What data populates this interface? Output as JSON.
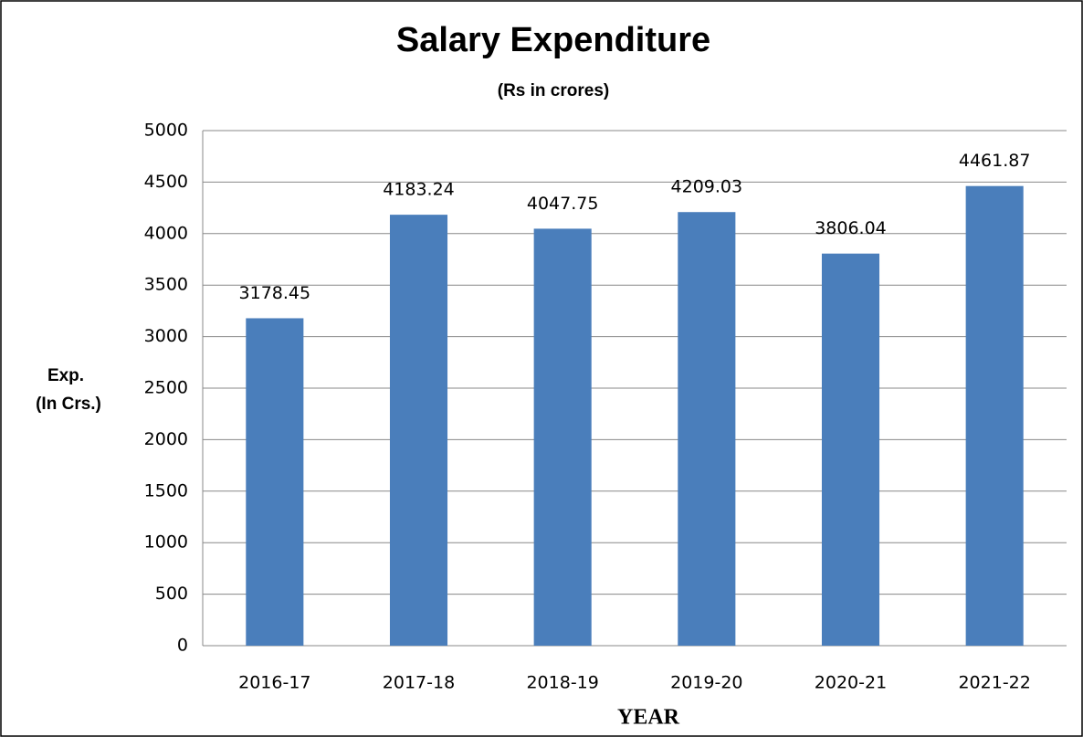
{
  "chart_data": {
    "type": "bar",
    "title": "Salary Expenditure",
    "subtitle": "(Rs in crores)",
    "ylabel": [
      "Exp.",
      "(In Crs.)"
    ],
    "xlabel": "YEAR",
    "categories": [
      "2016-17",
      "2017-18",
      "2018-19",
      "2019-20",
      "2020-21",
      "2021-22"
    ],
    "values": [
      3178.45,
      4183.24,
      4047.75,
      4209.03,
      3806.04,
      4461.87
    ],
    "color": "#4a7ebb",
    "ylim": [
      0,
      5000
    ],
    "yticks": [
      0,
      500,
      1000,
      1500,
      2000,
      2500,
      3000,
      3500,
      4000,
      4500,
      5000
    ],
    "grid": true
  }
}
